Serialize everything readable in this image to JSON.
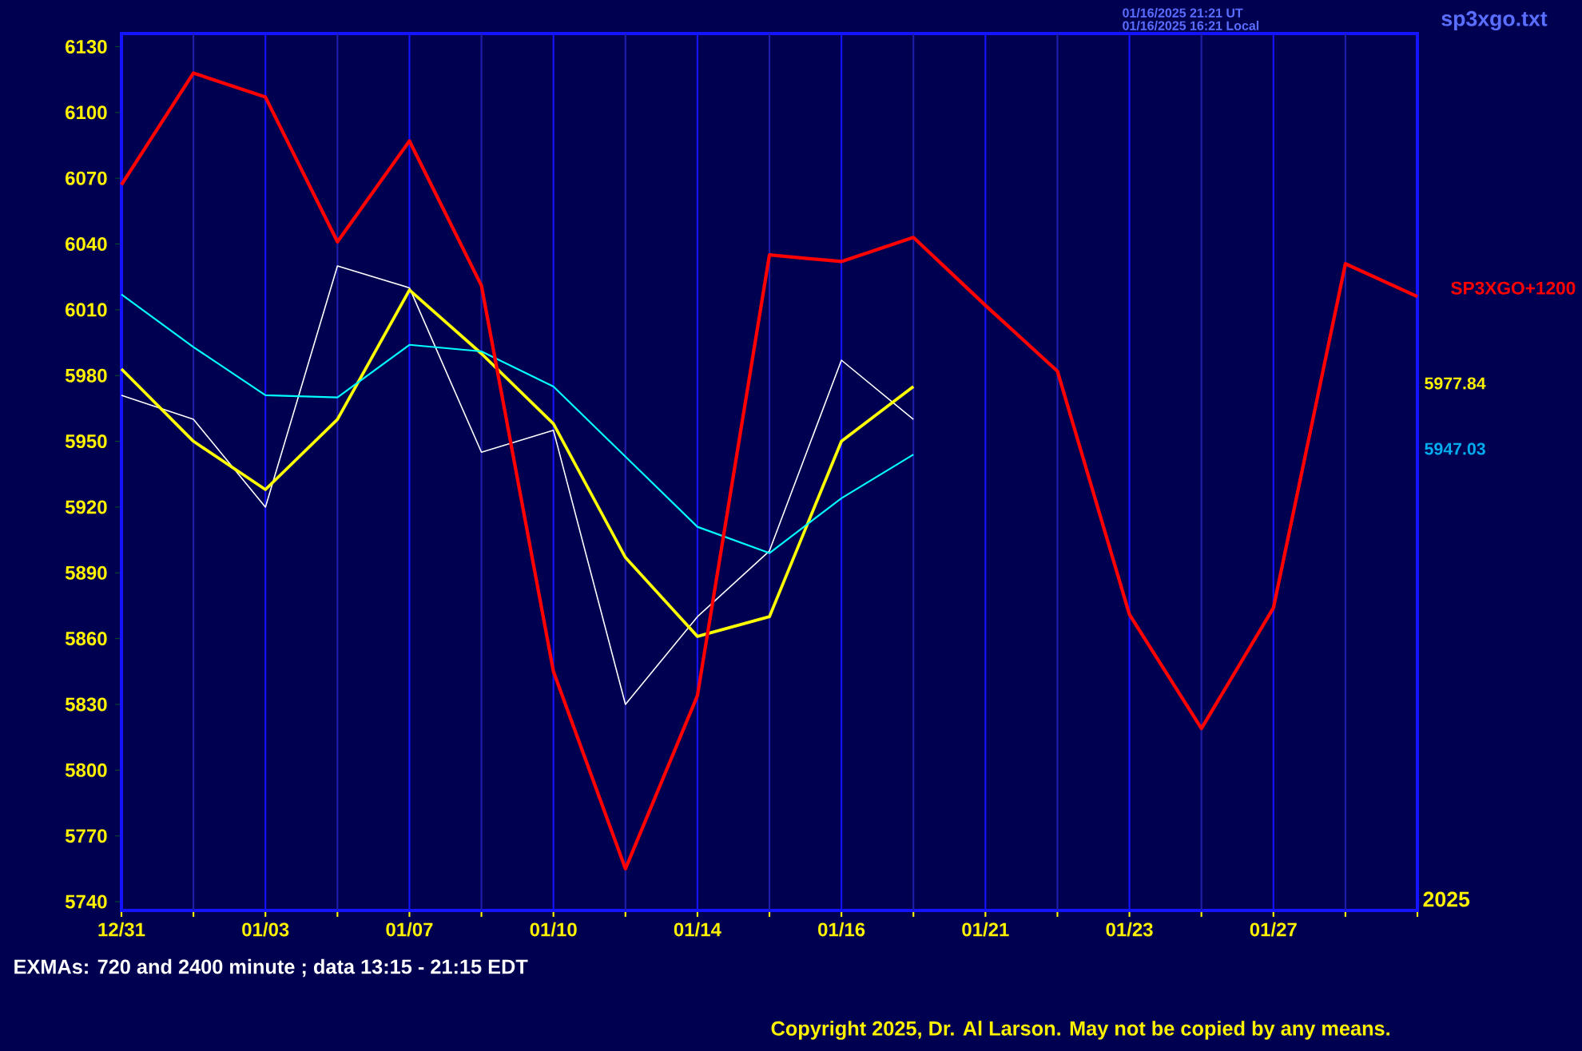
{
  "chart_data": {
    "type": "line",
    "categories": [
      "12/31",
      null,
      "01/03",
      null,
      "01/07",
      null,
      "01/10",
      null,
      "01/14",
      null,
      "01/16",
      null,
      "01/21",
      null,
      "01/23",
      null,
      "01/27",
      null,
      null
    ],
    "ylim": [
      5736,
      6136
    ],
    "yticks": [
      5740,
      5770,
      5800,
      5830,
      5860,
      5890,
      5920,
      5950,
      5980,
      6010,
      6040,
      6070,
      6100,
      6130
    ],
    "grid": "x",
    "series": [
      {
        "color": "#ffffff",
        "values": [
          5971,
          5960,
          5920,
          6030,
          6020,
          5945,
          5955,
          5830,
          5870,
          5900,
          5987,
          5960,
          null,
          null,
          null,
          null,
          null,
          null,
          null
        ]
      },
      {
        "color": "#ffff00",
        "values": [
          5983,
          5950,
          5928,
          5960,
          6019,
          5990,
          5958,
          5897,
          5861,
          5870,
          5950,
          5975,
          null,
          null,
          null,
          null,
          null,
          null,
          null
        ]
      },
      {
        "color": "#00ffff",
        "values": [
          6017,
          5993,
          5971,
          5970,
          5994,
          5991,
          5975,
          5943,
          5911,
          5899,
          5924,
          5944,
          null,
          null,
          null,
          null,
          null,
          null,
          null
        ]
      },
      {
        "name": "SP3XGO+1200",
        "color": "#ff0000",
        "values": [
          6067,
          6118,
          6107,
          6041,
          6087,
          6021,
          5845,
          5755,
          5834,
          6035,
          6032,
          6043,
          6012,
          5982,
          5871,
          5819,
          5874,
          6031,
          6016
        ]
      }
    ],
    "annotations": [
      "sp3xgo.txt",
      "01/16/2025 21:21 UT",
      "01/16/2025 16:21 Local",
      "5977.84",
      "5947.03",
      "2025",
      "EXMAs: 720 and 2400 minute ; data 13:15 - 21:15 EDT",
      "Copyright 2025, Dr. Al Larson. May not be copied by any means."
    ]
  }
}
